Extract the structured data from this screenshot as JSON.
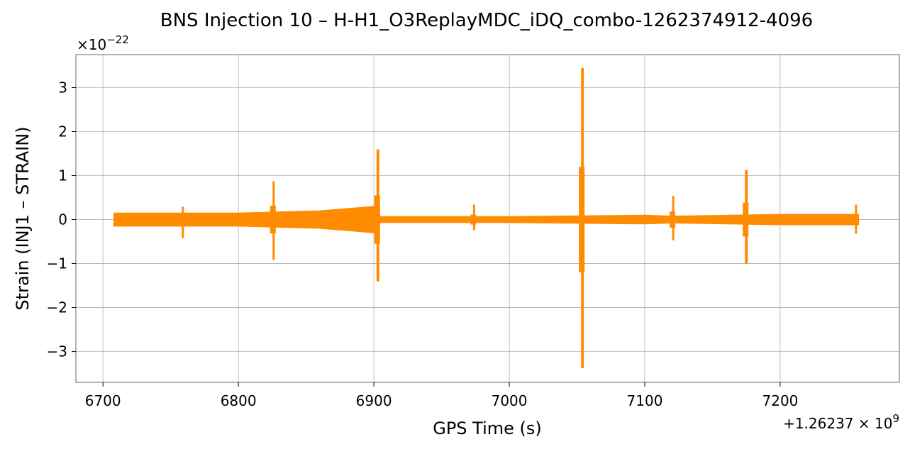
{
  "chart_data": {
    "type": "line",
    "title": "BNS Injection 10 – H-H1_O3ReplayMDC_iDQ_combo-1262374912-4096",
    "xlabel": "GPS Time (s)",
    "ylabel": "Strain (INJ1 – STRAIN)",
    "x_offset_text": "+1.26237 × 10",
    "x_offset_exp": "9",
    "y_scale_text": "×10",
    "y_scale_exp": "−22",
    "xlim": [
      6680,
      7288
    ],
    "ylim": [
      -3.7,
      3.75
    ],
    "x_ticks": [
      6700,
      6800,
      6900,
      7000,
      7100,
      7200
    ],
    "x_tick_labels": [
      "6700",
      "6800",
      "6900",
      "7000",
      "7100",
      "7200"
    ],
    "y_ticks": [
      -3,
      -2,
      -1,
      0,
      1,
      2,
      3
    ],
    "y_tick_labels": [
      "−3",
      "−2",
      "−1",
      "0",
      "1",
      "2",
      "3"
    ],
    "grid": true,
    "color": "#ff8c00",
    "series": [
      {
        "x_range": [
          6708,
          7258
        ],
        "baseline_envelope": [
          {
            "x": 6708,
            "upper": 0.15,
            "lower": -0.15
          },
          {
            "x": 6758,
            "upper": 0.15,
            "lower": -0.15
          },
          {
            "x": 6800,
            "upper": 0.15,
            "lower": -0.15
          },
          {
            "x": 6824,
            "upper": 0.17,
            "lower": -0.17
          },
          {
            "x": 6860,
            "upper": 0.2,
            "lower": -0.2
          },
          {
            "x": 6900,
            "upper": 0.3,
            "lower": -0.3
          },
          {
            "x": 6905,
            "upper": 0.07,
            "lower": -0.07
          },
          {
            "x": 7000,
            "upper": 0.07,
            "lower": -0.07
          },
          {
            "x": 7100,
            "upper": 0.1,
            "lower": -0.1
          },
          {
            "x": 7120,
            "upper": 0.08,
            "lower": -0.08
          },
          {
            "x": 7200,
            "upper": 0.12,
            "lower": -0.12
          },
          {
            "x": 7258,
            "upper": 0.12,
            "lower": -0.12
          }
        ],
        "spikes": [
          {
            "x": 6759,
            "max": 0.27,
            "min": -0.4
          },
          {
            "x": 6826,
            "max": 0.85,
            "min": -0.9
          },
          {
            "x": 6903,
            "max": 1.57,
            "min": -1.38
          },
          {
            "x": 6974,
            "max": 0.32,
            "min": -0.22
          },
          {
            "x": 7054,
            "max": 3.42,
            "min": -3.35
          },
          {
            "x": 7121,
            "max": 0.52,
            "min": -0.45
          },
          {
            "x": 7175,
            "max": 1.1,
            "min": -0.97
          },
          {
            "x": 7256,
            "max": 0.32,
            "min": -0.3
          }
        ]
      }
    ]
  }
}
